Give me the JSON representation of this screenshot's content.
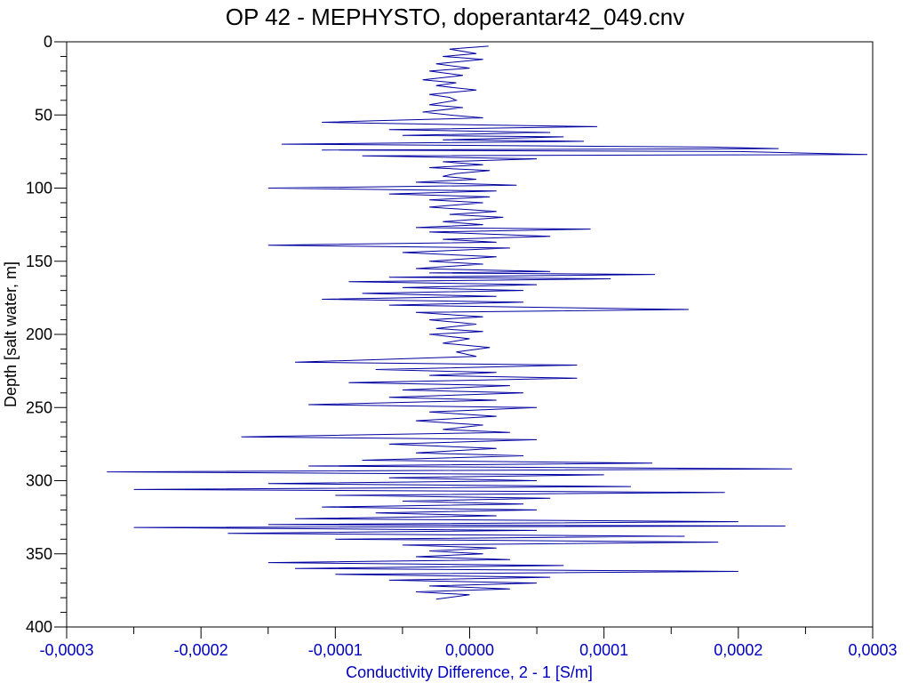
{
  "chart_data": {
    "type": "line",
    "title": "OP 42 - MEPHYSTO, doperantar42_049.cnv",
    "xlabel": "Conductivity Difference, 2 - 1 [S/m]",
    "ylabel": "Depth [salt water, m]",
    "xlim": [
      -0.0003,
      0.0003
    ],
    "ylim": [
      400,
      0
    ],
    "y_inverted": true,
    "grid": false,
    "x_ticks": [
      -0.0003,
      -0.0002,
      -0.0001,
      0.0,
      0.0001,
      0.0002,
      0.0003
    ],
    "x_tick_labels": [
      "-0,0003",
      "-0,0002",
      "-0,0001",
      "0,0000",
      "0,0001",
      "0,0002",
      "0,0003"
    ],
    "y_ticks": [
      0,
      50,
      100,
      150,
      200,
      250,
      300,
      350,
      400
    ],
    "y_tick_labels": [
      "0",
      "50",
      "100",
      "150",
      "200",
      "250",
      "300",
      "350",
      "400"
    ],
    "x_axis_color": "#0000c0",
    "series": [
      {
        "color": "#0000a0",
        "points": [
          [
            1.4e-05,
            3
          ],
          [
            -1.5e-05,
            5
          ],
          [
            5e-06,
            8
          ],
          [
            -2e-05,
            10
          ],
          [
            1e-05,
            12
          ],
          [
            -2.5e-05,
            15
          ],
          [
            0.0,
            18
          ],
          [
            -3e-05,
            20
          ],
          [
            -5e-06,
            23
          ],
          [
            -3.5e-05,
            26
          ],
          [
            -1e-05,
            28
          ],
          [
            -2.5e-05,
            30
          ],
          [
            5e-06,
            33
          ],
          [
            -3e-05,
            36
          ],
          [
            -1.5e-05,
            38
          ],
          [
            -1e-05,
            40
          ],
          [
            -3e-05,
            43
          ],
          [
            -5e-06,
            45
          ],
          [
            -3.5e-05,
            48
          ],
          [
            -1.5e-05,
            50
          ],
          [
            1e-05,
            52
          ],
          [
            -7e-05,
            54
          ],
          [
            -0.00011,
            55
          ],
          [
            2e-05,
            57
          ],
          [
            9.5e-05,
            58
          ],
          [
            -6e-05,
            60
          ],
          [
            6e-05,
            62
          ],
          [
            -5e-05,
            64
          ],
          [
            7e-05,
            65
          ],
          [
            -2e-05,
            67
          ],
          [
            8.5e-05,
            68
          ],
          [
            -0.00014,
            70
          ],
          [
            0.00018,
            72
          ],
          [
            0.00023,
            73
          ],
          [
            -0.00011,
            74
          ],
          [
            0.0002,
            75
          ],
          [
            0.000296,
            77
          ],
          [
            -8e-05,
            78
          ],
          [
            5e-05,
            80
          ],
          [
            -2e-05,
            82
          ],
          [
            1e-05,
            84
          ],
          [
            -3e-05,
            86
          ],
          [
            1.5e-05,
            88
          ],
          [
            -1e-05,
            90
          ],
          [
            -2e-05,
            92
          ],
          [
            5e-06,
            94
          ],
          [
            -4e-05,
            96
          ],
          [
            3.5e-05,
            98
          ],
          [
            -0.00015,
            100
          ],
          [
            2e-05,
            102
          ],
          [
            -6e-05,
            104
          ],
          [
            1.5e-05,
            106
          ],
          [
            -3e-05,
            108
          ],
          [
            1e-05,
            110
          ],
          [
            -3e-05,
            113
          ],
          [
            2e-05,
            116
          ],
          [
            -1.5e-05,
            118
          ],
          [
            2.5e-05,
            120
          ],
          [
            -2e-05,
            123
          ],
          [
            1e-05,
            125
          ],
          [
            -4e-05,
            127
          ],
          [
            9e-05,
            128
          ],
          [
            -3e-05,
            130
          ],
          [
            6e-05,
            133
          ],
          [
            -2e-05,
            135
          ],
          [
            2e-05,
            137
          ],
          [
            -0.00015,
            139
          ],
          [
            3e-05,
            141
          ],
          [
            -5e-05,
            144
          ],
          [
            2e-05,
            147
          ],
          [
            -3e-05,
            150
          ],
          [
            1e-05,
            152
          ],
          [
            -4e-05,
            155
          ],
          [
            6e-05,
            157
          ],
          [
            -3e-05,
            158
          ],
          [
            0.000138,
            159
          ],
          [
            -6e-05,
            161
          ],
          [
            0.000105,
            162
          ],
          [
            -9e-05,
            164
          ],
          [
            5e-05,
            166
          ],
          [
            -5e-05,
            168
          ],
          [
            4e-05,
            170
          ],
          [
            -8e-05,
            172
          ],
          [
            2e-05,
            174
          ],
          [
            -0.00011,
            176
          ],
          [
            4e-05,
            178
          ],
          [
            -6e-05,
            180
          ],
          [
            0.000163,
            183
          ],
          [
            -4e-05,
            185
          ],
          [
            1e-05,
            188
          ],
          [
            -3e-05,
            190
          ],
          [
            5e-06,
            193
          ],
          [
            -2.5e-05,
            196
          ],
          [
            1e-05,
            198
          ],
          [
            -3e-05,
            200
          ],
          [
            0.0,
            203
          ],
          [
            -2e-05,
            206
          ],
          [
            1.5e-05,
            209
          ],
          [
            -1e-05,
            212
          ],
          [
            5e-06,
            215
          ],
          [
            -0.00013,
            219
          ],
          [
            8e-05,
            221
          ],
          [
            -7e-05,
            224
          ],
          [
            2e-05,
            226
          ],
          [
            -3e-05,
            228
          ],
          [
            8e-05,
            230
          ],
          [
            -9e-05,
            233
          ],
          [
            3e-05,
            235
          ],
          [
            -5e-05,
            238
          ],
          [
            4e-05,
            240
          ],
          [
            -6e-05,
            243
          ],
          [
            2e-05,
            245
          ],
          [
            -0.00012,
            248
          ],
          [
            5e-05,
            250
          ],
          [
            -3e-05,
            253
          ],
          [
            2e-05,
            256
          ],
          [
            -4e-05,
            259
          ],
          [
            1e-05,
            262
          ],
          [
            -2e-05,
            265
          ],
          [
            3e-05,
            267
          ],
          [
            -0.00017,
            270
          ],
          [
            5e-05,
            272
          ],
          [
            -6e-05,
            275
          ],
          [
            2e-05,
            278
          ],
          [
            -4e-05,
            281
          ],
          [
            4e-05,
            283
          ],
          [
            -8e-05,
            286
          ],
          [
            0.000136,
            288
          ],
          [
            -0.00012,
            290
          ],
          [
            0.00024,
            292
          ],
          [
            -0.00027,
            294
          ],
          [
            0.0001,
            296
          ],
          [
            -6e-05,
            298
          ],
          [
            5e-05,
            300
          ],
          [
            -0.00015,
            302
          ],
          [
            0.00012,
            304
          ],
          [
            -0.00025,
            306
          ],
          [
            0.00019,
            308
          ],
          [
            -0.0001,
            310
          ],
          [
            6e-05,
            312
          ],
          [
            -5e-05,
            314
          ],
          [
            4e-05,
            316
          ],
          [
            -0.00011,
            318
          ],
          [
            5e-05,
            320
          ],
          [
            -7e-05,
            322
          ],
          [
            2e-05,
            324
          ],
          [
            -0.00013,
            326
          ],
          [
            0.0002,
            328
          ],
          [
            -0.00015,
            330
          ],
          [
            0.000235,
            331
          ],
          [
            -0.00025,
            332
          ],
          [
            5e-05,
            334
          ],
          [
            -0.00018,
            336
          ],
          [
            0.00016,
            338
          ],
          [
            -0.0001,
            340
          ],
          [
            0.000185,
            342
          ],
          [
            -5e-05,
            344
          ],
          [
            2e-05,
            346
          ],
          [
            -3e-05,
            348
          ],
          [
            1e-05,
            350
          ],
          [
            -4e-05,
            352
          ],
          [
            3e-05,
            354
          ],
          [
            -0.00015,
            356
          ],
          [
            7e-05,
            358
          ],
          [
            -0.00013,
            360
          ],
          [
            0.0002,
            362
          ],
          [
            -0.0001,
            364
          ],
          [
            6e-05,
            366
          ],
          [
            -6e-05,
            368
          ],
          [
            5e-05,
            370
          ],
          [
            -3e-05,
            372
          ],
          [
            3e-05,
            374
          ],
          [
            -4e-05,
            376
          ],
          [
            0.0,
            378
          ],
          [
            -2.5e-05,
            381
          ]
        ]
      }
    ]
  }
}
